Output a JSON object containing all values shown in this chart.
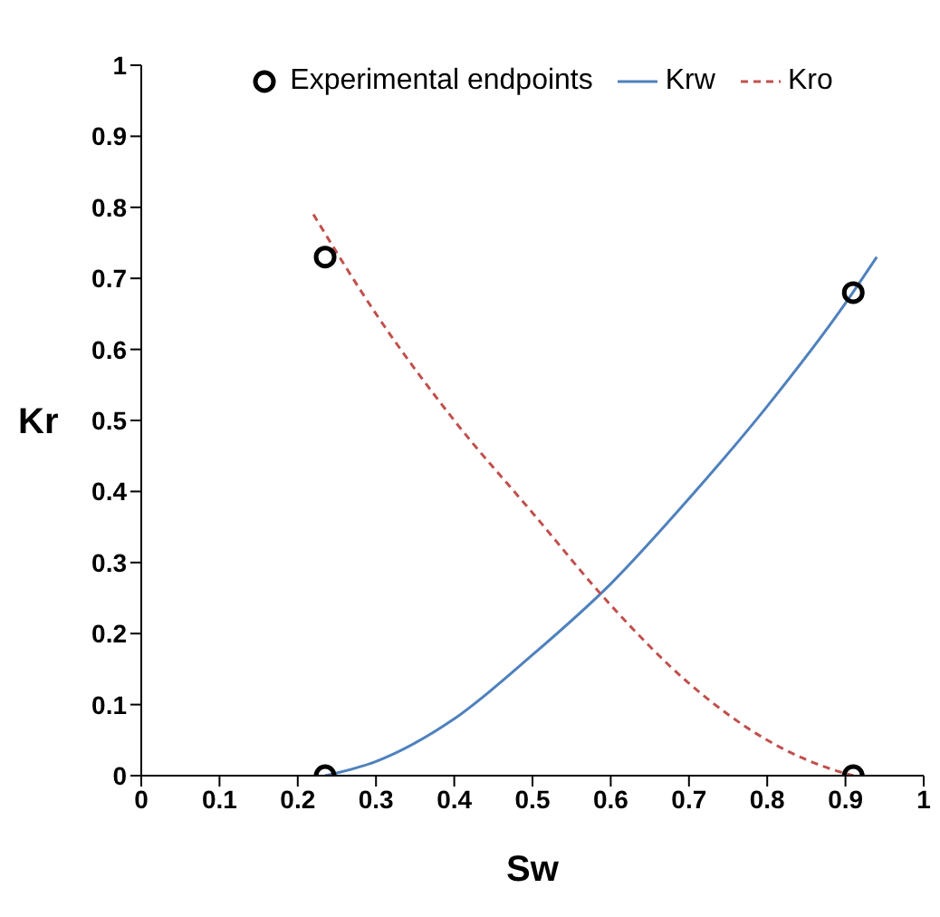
{
  "chart_data": {
    "type": "line",
    "xlabel": "Sw",
    "ylabel": "Kr",
    "xlim": [
      0,
      1
    ],
    "ylim": [
      0,
      1
    ],
    "xticks": [
      0,
      0.1,
      0.2,
      0.3,
      0.4,
      0.5,
      0.6,
      0.7,
      0.8,
      0.9,
      1
    ],
    "yticks": [
      0,
      0.1,
      0.2,
      0.3,
      0.4,
      0.5,
      0.6,
      0.7,
      0.8,
      0.9,
      1
    ],
    "grid": false,
    "legend": "top",
    "series": [
      {
        "type": "scatter",
        "name": "Experimental endpoints",
        "color": "#000000",
        "marker": "circle",
        "x": [
          0.235,
          0.235,
          0.91,
          0.91
        ],
        "values": [
          0,
          0.73,
          0.68,
          0
        ]
      },
      {
        "type": "line",
        "name": "Krw",
        "color": "#4f81bd",
        "marker": "none",
        "line_style": "solid",
        "x": [
          0.235,
          0.3,
          0.4,
          0.5,
          0.6,
          0.7,
          0.8,
          0.9,
          0.94
        ],
        "values": [
          0,
          0.02,
          0.08,
          0.17,
          0.27,
          0.39,
          0.52,
          0.665,
          0.73
        ]
      },
      {
        "type": "line",
        "name": "Kro",
        "color": "#c0504d",
        "marker": "none",
        "line_style": "dashed",
        "x": [
          0.22,
          0.3,
          0.4,
          0.5,
          0.6,
          0.7,
          0.8,
          0.9,
          0.91
        ],
        "values": [
          0.79,
          0.65,
          0.5,
          0.37,
          0.24,
          0.13,
          0.05,
          0.003,
          0
        ]
      }
    ]
  }
}
